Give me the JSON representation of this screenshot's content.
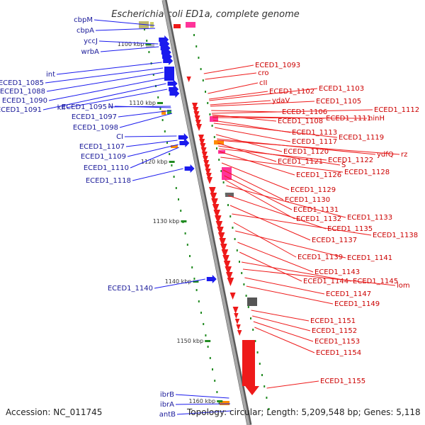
{
  "title": "Escherichia coli ED1a, complete genome",
  "footer": {
    "accession": "Accession: NC_011745",
    "summary": "Topology: circular; Length: 5,209,548 bp; Genes: 5,118"
  },
  "colors": {
    "left_strand": "#1a1aee",
    "right_strand": "#ee1a1a",
    "backbone": "#909090",
    "tick": "#228B22",
    "left_label": "#1a1a99",
    "right_label": "#cc0000"
  },
  "ticks": [
    "1100 kbp",
    "1110 kbp",
    "1120 kbp",
    "1130 kbp",
    "1140 kbp",
    "1150 kbp",
    "1160 kbp"
  ],
  "left_genes": [
    "cbpM",
    "cbpA",
    "yccJ",
    "wrbA",
    "int",
    "ECED1_1085",
    "ECED1_1088",
    "ECED1_1090",
    "ECED1_1091",
    "kil",
    "ECED1_1095",
    "N",
    "ECED1_1097",
    "ECED1_1098",
    "CI",
    "ECED1_1107",
    "ECED1_1109",
    "ECED1_1110",
    "ECED1_1118",
    "ECED1_1140",
    "ibrB",
    "ibrA",
    "antB"
  ],
  "right_genes": [
    "ECED1_1093",
    "cro",
    "cII",
    "ECED1_1102",
    "ECED1_1103",
    "ydaV",
    "ECED1_1105",
    "ECED1_1106",
    "ECED1_1112",
    "ECED1_1108",
    "ECED1_1111",
    "ninH",
    "ECED1_1113",
    "ECED1_1119",
    "ECED1_1117",
    "ECED1_1120",
    "ydfQ",
    "rz",
    "ECED1_1121",
    "S",
    "ECED1_1122",
    "ECED1_1126",
    "ECED1_1128",
    "ECED1_1129",
    "ECED1_1130",
    "ECED1_1131",
    "ECED1_1132",
    "ECED1_1133",
    "ECED1_1135",
    "ECED1_1137",
    "ECED1_1138",
    "ECED1_1139",
    "ECED1_1141",
    "ECED1_1143",
    "ECED1_1144",
    "ECED1_1145",
    "lom",
    "ECED1_1147",
    "ECED1_1149",
    "ECED1_1151",
    "ECED1_1152",
    "ECED1_1153",
    "ECED1_1154",
    "ECED1_1155"
  ]
}
